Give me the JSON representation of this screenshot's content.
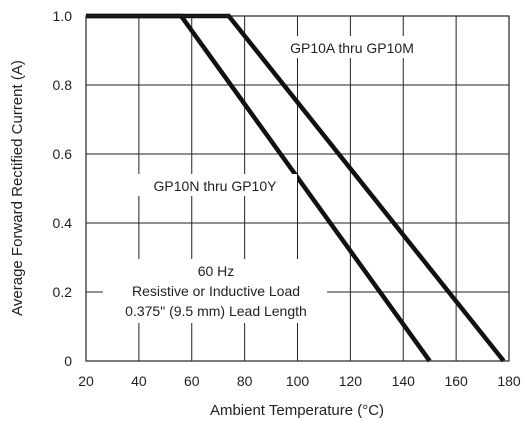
{
  "chart_data": {
    "type": "line",
    "title": "",
    "xlabel": "Ambient Temperature (°C)",
    "ylabel": "Average Forward Rectified Current (A)",
    "xlim": [
      20,
      180
    ],
    "ylim": [
      0,
      1.0
    ],
    "grid": true,
    "x_ticks": [
      20,
      40,
      60,
      80,
      100,
      120,
      140,
      160,
      180
    ],
    "y_ticks": [
      0,
      0.2,
      0.4,
      0.6,
      0.8,
      1.0
    ],
    "x_tick_labels": [
      "20",
      "40",
      "60",
      "80",
      "100",
      "120",
      "140",
      "160",
      "180"
    ],
    "y_tick_labels": [
      "0",
      "0.2",
      "0.4",
      "0.6",
      "0.8",
      "1.0"
    ],
    "series": [
      {
        "name": "GP10A thru GP10M",
        "x": [
          20,
          74,
          178
        ],
        "y": [
          1.0,
          1.0,
          0
        ]
      },
      {
        "name": "GP10N thru GP10Y",
        "x": [
          20,
          56,
          150
        ],
        "y": [
          1.0,
          1.0,
          0
        ]
      }
    ],
    "annotations": {
      "note_lines": [
        "60 Hz",
        "Resistive or Inductive Load",
        "0.375\" (9.5 mm) Lead Length"
      ]
    }
  }
}
